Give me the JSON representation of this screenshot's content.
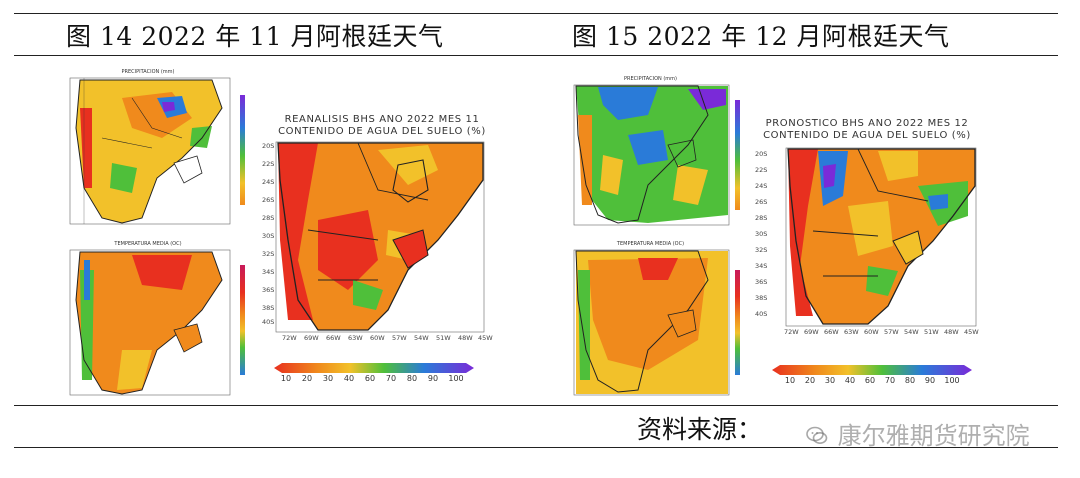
{
  "captions": {
    "left": "图 14   2022 年 11 月阿根廷天气",
    "right": "图 15   2022 年 12 月阿根廷天气"
  },
  "source_label": "资料来源：",
  "watermark": "康尔雅期货研究院",
  "left_panel": {
    "small_top_title": "PRECIPITACION (mm)",
    "small_bottom_title": "TEMPERATURA MEDIA (OC)",
    "main_title_line1": "REANALISIS BHS ANO 2022 MES 11",
    "main_title_line2": "CONTENIDO DE AGUA DEL SUELO (%)"
  },
  "right_panel": {
    "small_top_title": "PRECIPITACION (mm)",
    "small_bottom_title": "TEMPERATURA MEDIA (OC)",
    "main_title_line1": "PRONOSTICO BHS ANO 2022 MES 12",
    "main_title_line2": "CONTENIDO DE AGUA DEL SUELO (%)"
  },
  "main_map_axes": {
    "lat_ticks": [
      "20S",
      "22S",
      "24S",
      "26S",
      "28S",
      "30S",
      "32S",
      "34S",
      "36S",
      "38S",
      "40S"
    ],
    "lon_ticks": [
      "72W",
      "69W",
      "66W",
      "63W",
      "60W",
      "57W",
      "54W",
      "51W",
      "48W",
      "45W"
    ]
  },
  "colorbar_labels": [
    "10",
    "20",
    "30",
    "40",
    "60",
    "70",
    "80",
    "90",
    "100"
  ],
  "colors": {
    "ocean": "#ffffff",
    "dry": "#e8301f",
    "orange": "#f08a1c",
    "yellow": "#f2c12a",
    "green": "#4fbf3a",
    "blue": "#2a7bd8",
    "purple": "#7a2ad8"
  }
}
